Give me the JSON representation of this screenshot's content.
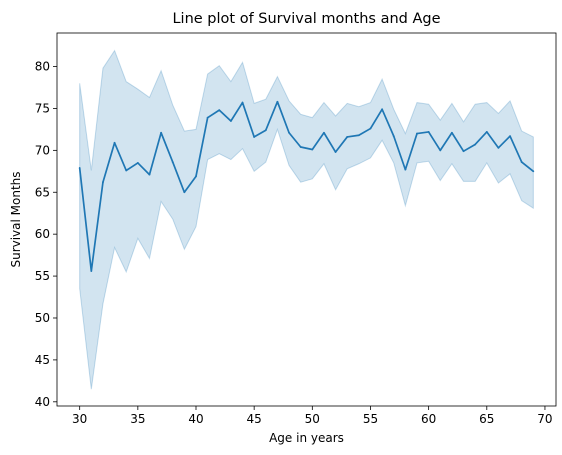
{
  "chart_data": {
    "type": "line",
    "title": "Line plot of Survival months and Age",
    "xlabel": "Age in years",
    "ylabel": "Survival Months",
    "xlim": [
      28.05,
      70.95
    ],
    "ylim": [
      39.5,
      84.0
    ],
    "xticks": [
      30,
      35,
      40,
      45,
      50,
      55,
      60,
      65,
      70
    ],
    "yticks": [
      40,
      45,
      50,
      55,
      60,
      65,
      70,
      75,
      80
    ],
    "grid": false,
    "colors": {
      "line": "#1f77b4",
      "band": "#1f77b4"
    },
    "series": [
      {
        "x": [
          30,
          31,
          32,
          33,
          34,
          35,
          36,
          37,
          38,
          39,
          40,
          41,
          42,
          43,
          44,
          45,
          46,
          47,
          48,
          49,
          50,
          51,
          52,
          53,
          54,
          55,
          56,
          57,
          58,
          59,
          60,
          61,
          62,
          63,
          64,
          65,
          66,
          67,
          68,
          69
        ],
        "y": [
          67.9,
          55.6,
          66.2,
          70.9,
          67.6,
          68.5,
          67.1,
          72.1,
          68.6,
          65.0,
          66.9,
          73.9,
          74.8,
          73.5,
          75.7,
          71.6,
          72.4,
          75.8,
          72.1,
          70.4,
          70.1,
          72.1,
          69.8,
          71.6,
          71.8,
          72.6,
          74.9,
          71.7,
          67.7,
          72.0,
          72.2,
          70.0,
          72.1,
          69.9,
          70.7,
          72.2,
          70.3,
          71.7,
          68.6,
          67.5
        ],
        "lower": [
          53.5,
          41.5,
          51.7,
          58.4,
          55.5,
          59.5,
          57.1,
          63.9,
          61.8,
          58.2,
          60.9,
          68.9,
          69.6,
          68.9,
          70.2,
          67.5,
          68.6,
          72.5,
          68.2,
          66.2,
          66.6,
          68.4,
          65.3,
          67.8,
          68.4,
          69.1,
          71.2,
          68.5,
          63.4,
          68.5,
          68.7,
          66.4,
          68.4,
          66.3,
          66.3,
          68.5,
          66.1,
          67.2,
          64.0,
          63.1
        ],
        "upper": [
          78.0,
          67.6,
          79.8,
          81.9,
          78.2,
          77.3,
          76.3,
          79.5,
          75.4,
          72.3,
          72.5,
          79.1,
          80.1,
          78.2,
          80.5,
          75.6,
          76.1,
          78.8,
          75.9,
          74.3,
          73.9,
          75.7,
          74.1,
          75.6,
          75.2,
          75.7,
          78.5,
          74.9,
          72.0,
          75.7,
          75.5,
          73.6,
          75.6,
          73.4,
          75.5,
          75.7,
          74.4,
          75.9,
          72.3,
          71.6
        ]
      }
    ]
  }
}
